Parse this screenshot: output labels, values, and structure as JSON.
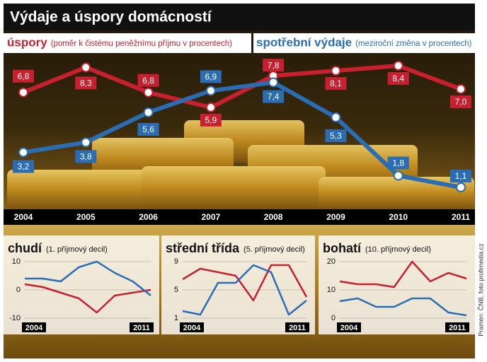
{
  "source": "Pramen: ČNB, foto profimedia.cz",
  "chart_data": [
    {
      "type": "line",
      "title": "Výdaje a úspory domácností",
      "categories": [
        "2004",
        "2005",
        "2006",
        "2007",
        "2008",
        "2009",
        "2010",
        "2011"
      ],
      "series": [
        {
          "name": "úspory",
          "description": "(poměr k čistému peněžnímu příjmu v procentech)",
          "color": "#c8202f",
          "values": [
            6.8,
            8.3,
            6.8,
            5.9,
            7.8,
            8.1,
            8.4,
            7.0
          ],
          "value_labels": [
            "6,8",
            "8,3",
            "6,8",
            "5,9",
            "7,8",
            "8,1",
            "8,4",
            "7,0"
          ]
        },
        {
          "name": "spotřební výdaje",
          "description": "(meziroční změna v procentech)",
          "color": "#2a6db5",
          "values": [
            3.2,
            3.8,
            5.6,
            6.9,
            7.4,
            5.3,
            1.8,
            1.1
          ],
          "value_labels": [
            "3,2",
            "3,8",
            "5,6",
            "6,9",
            "7,4",
            "5,3",
            "1,8",
            "1,1"
          ]
        }
      ]
    },
    {
      "type": "line",
      "title": "chudí",
      "subtitle": "(1. příjmový decil)",
      "categories": [
        "2004",
        null,
        null,
        null,
        null,
        null,
        null,
        "2011"
      ],
      "ylim": [
        -10,
        10
      ],
      "yticks": [
        10,
        0,
        -10
      ],
      "grid": true,
      "series": [
        {
          "color": "#c8202f",
          "values": [
            2,
            1,
            -1,
            -3,
            -8,
            -2,
            -1,
            0
          ]
        },
        {
          "color": "#2a6db5",
          "values": [
            4,
            4,
            3,
            8,
            10,
            6,
            3,
            -2
          ]
        }
      ]
    },
    {
      "type": "line",
      "title": "střední třída",
      "subtitle": "(5. příjmový decil)",
      "categories": [
        "2004",
        null,
        null,
        null,
        null,
        null,
        null,
        "2011"
      ],
      "ylim": [
        1,
        9
      ],
      "yticks": [
        9,
        5,
        1
      ],
      "grid": true,
      "series": [
        {
          "color": "#c8202f",
          "values": [
            6.5,
            8,
            7.5,
            7,
            3.5,
            8.5,
            8.5,
            4
          ]
        },
        {
          "color": "#2a6db5",
          "values": [
            2,
            1.5,
            6,
            6,
            8.5,
            7.5,
            1.5,
            3.5
          ]
        }
      ]
    },
    {
      "type": "line",
      "title": "bohatí",
      "subtitle": "(10. příjmový decil)",
      "categories": [
        "2004",
        null,
        null,
        null,
        null,
        null,
        null,
        "2011"
      ],
      "ylim": [
        0,
        20
      ],
      "yticks": [
        20,
        10,
        0
      ],
      "grid": true,
      "series": [
        {
          "color": "#c8202f",
          "values": [
            13,
            12,
            12,
            11,
            20,
            13,
            16,
            14
          ]
        },
        {
          "color": "#2a6db5",
          "values": [
            6,
            7,
            4,
            4,
            7,
            7,
            2,
            1
          ]
        }
      ]
    }
  ]
}
